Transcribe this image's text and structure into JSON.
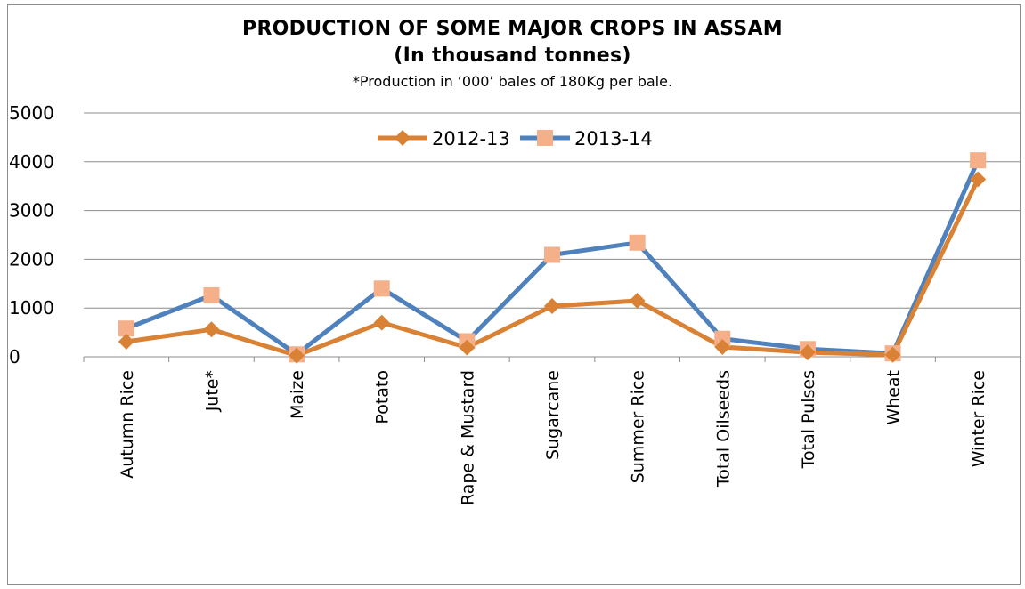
{
  "chart_data": {
    "type": "line",
    "title": "PRODUCTION OF SOME MAJOR CROPS IN ASSAM",
    "subtitle": "(In thousand tonnes)",
    "note": "*Production in ‘000’ bales of 180Kg per bale.",
    "categories": [
      "Autumn Rice",
      "Jute*",
      "Maize",
      "Potato",
      "Rape & Mustard",
      "Sugarcane",
      "Summer Rice",
      "Total Oilseeds",
      "Total Pulses",
      "Wheat",
      "Winter Rice"
    ],
    "series": [
      {
        "name": "2012-13",
        "color": "#d98236",
        "marker": "diamond",
        "values": [
          310,
          560,
          25,
          700,
          190,
          1040,
          1150,
          200,
          90,
          40,
          3640
        ]
      },
      {
        "name": "2013-14",
        "color": "#4f81bd",
        "marker_color": "#f5b08a",
        "marker": "square",
        "values": [
          580,
          1260,
          50,
          1400,
          320,
          2090,
          2340,
          370,
          160,
          70,
          4030
        ]
      }
    ],
    "yticks": [
      "0",
      "1000",
      "2000",
      "3000",
      "4000",
      "5000"
    ],
    "ylim": [
      0,
      5000
    ],
    "grid": true,
    "legend_position": "top-center"
  }
}
